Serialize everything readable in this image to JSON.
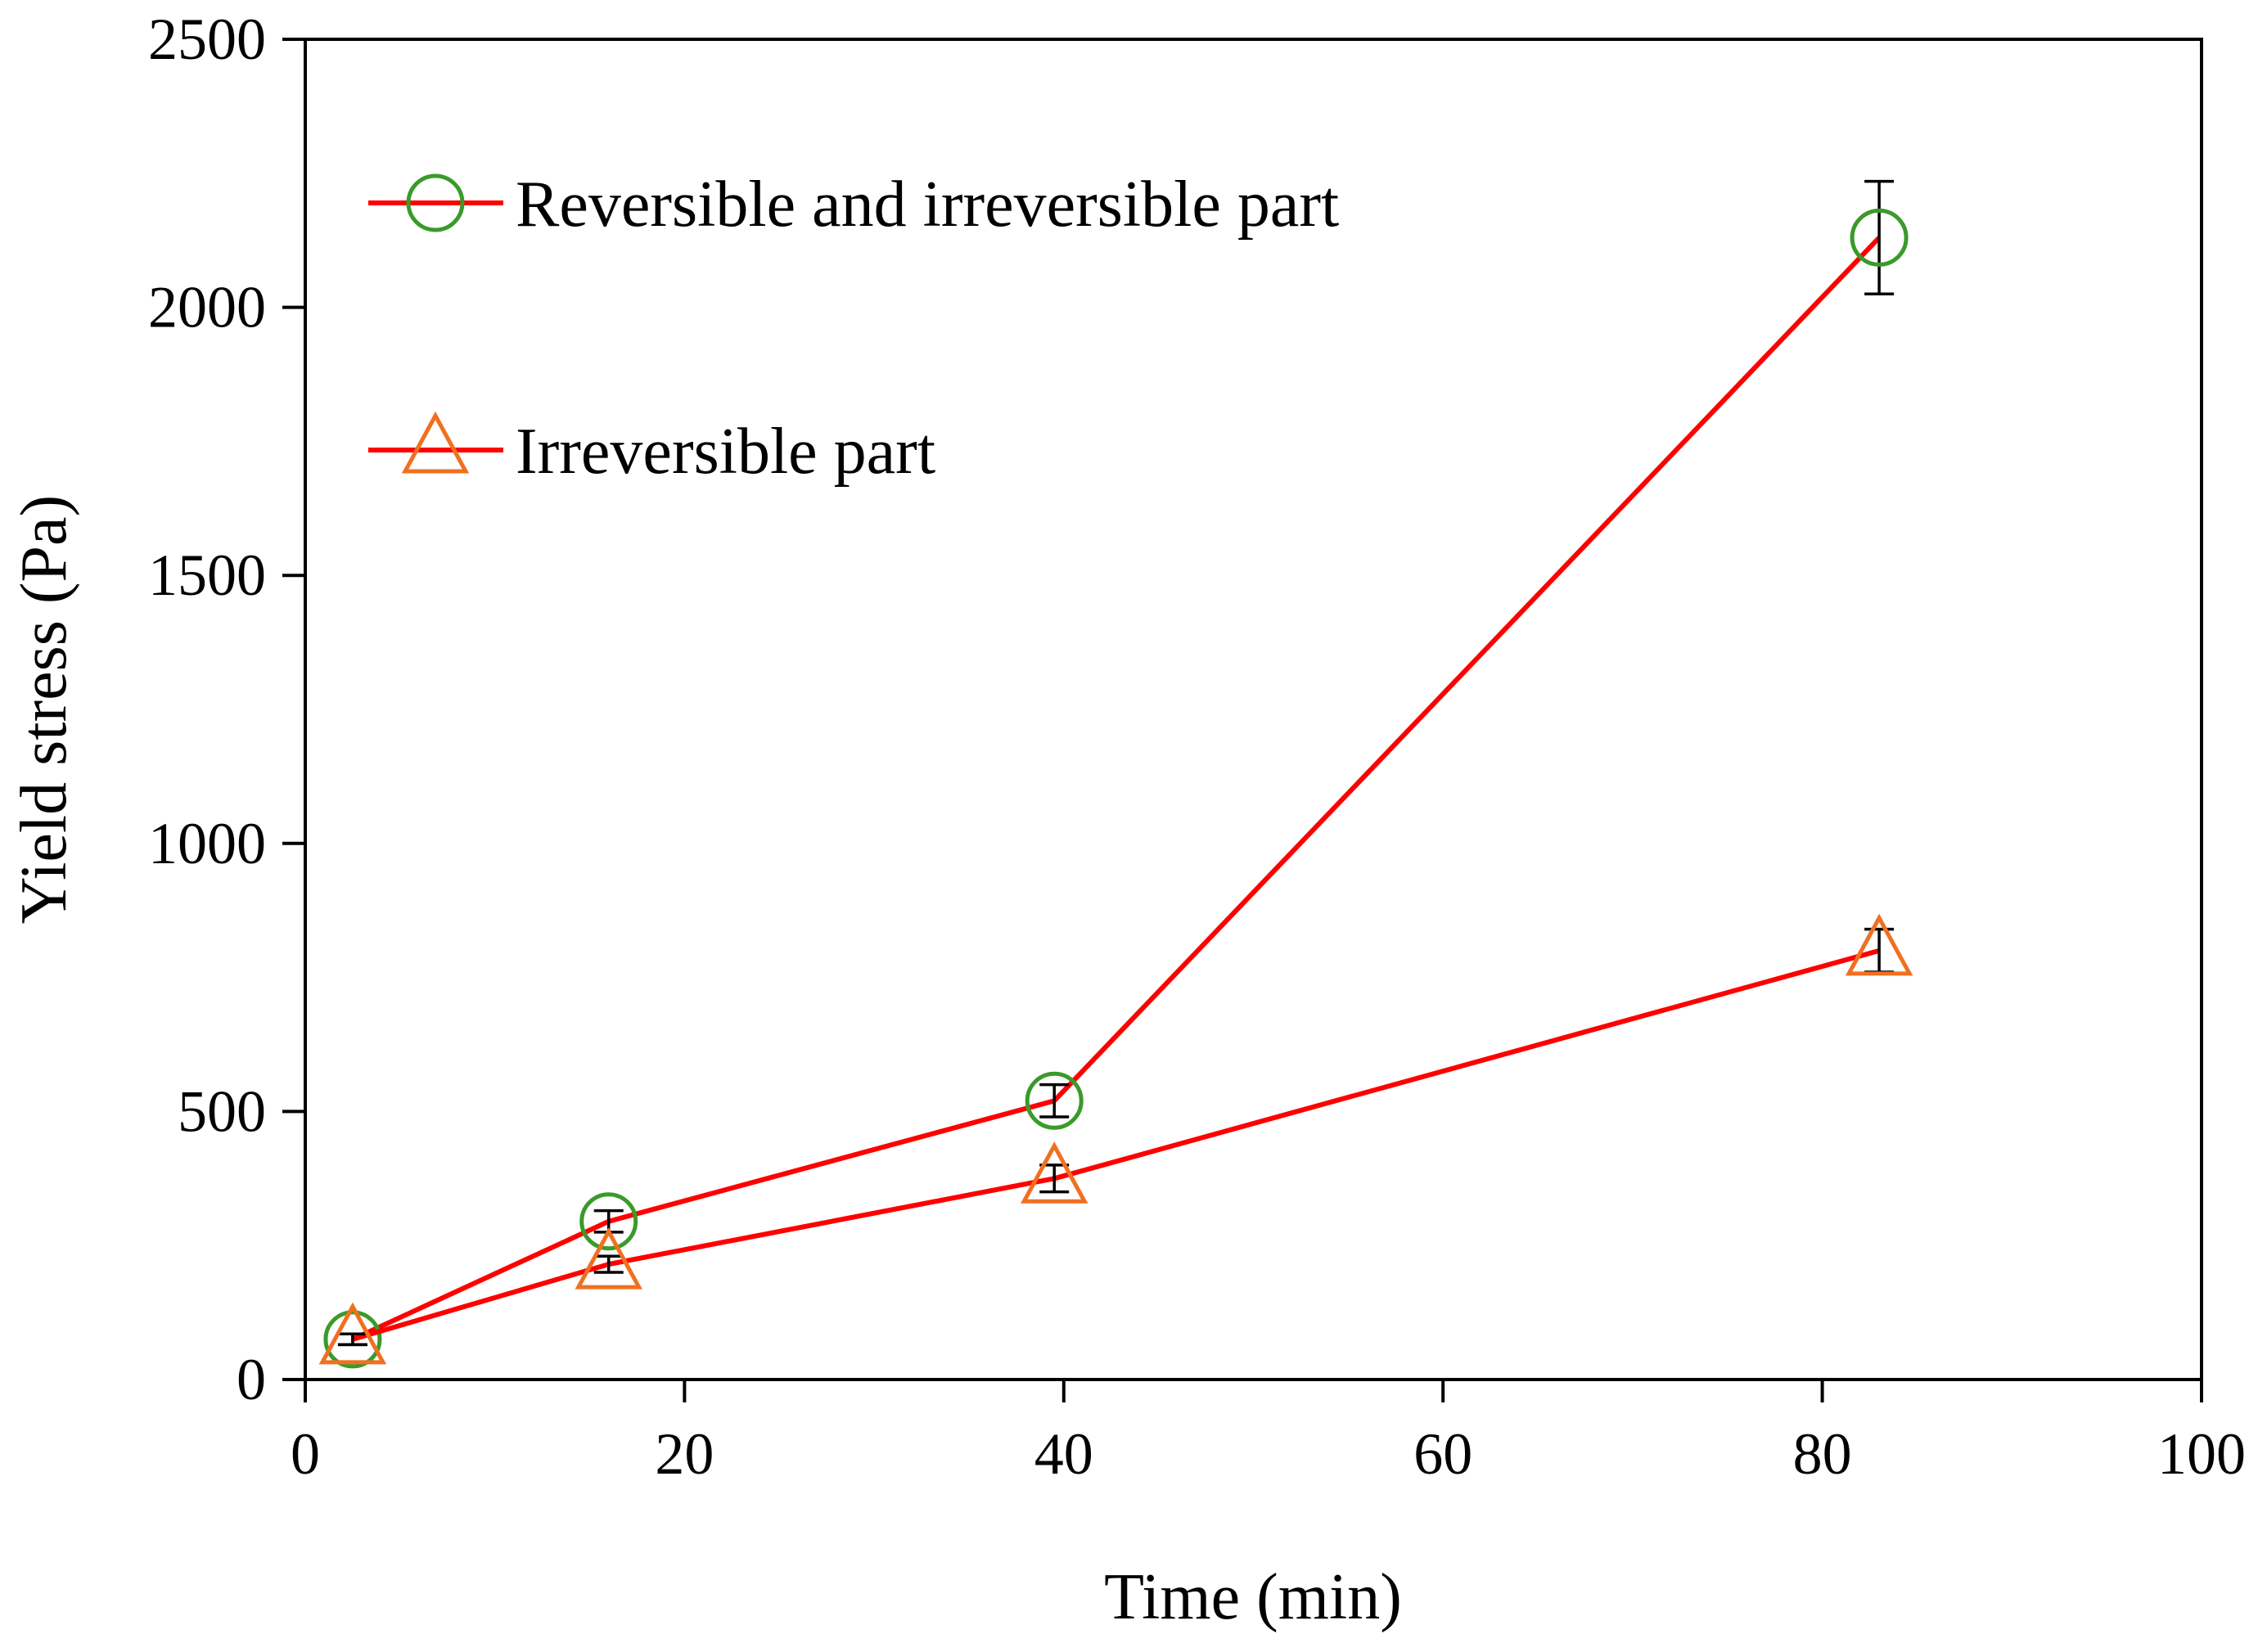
{
  "chart_data": {
    "type": "line",
    "title": "",
    "xlabel": "Time (min)",
    "ylabel": "Yield stress (Pa)",
    "xlim": [
      0,
      100
    ],
    "ylim": [
      0,
      2500
    ],
    "xticks": [
      0,
      20,
      40,
      60,
      80,
      100
    ],
    "yticks": [
      0,
      500,
      1000,
      1500,
      2000,
      2500
    ],
    "grid": false,
    "legend_position": "top-left",
    "series": [
      {
        "name": "Reversible and irreversible part",
        "marker": "circle",
        "line_color": "#ff0000",
        "marker_color": "#3a9a2a",
        "x": [
          2.5,
          16,
          39.5,
          83
        ],
        "y": [
          75,
          295,
          520,
          2130
        ],
        "error": [
          10,
          20,
          30,
          105
        ]
      },
      {
        "name": "Irreversible part",
        "marker": "triangle",
        "line_color": "#ff0000",
        "marker_color": "#f07020",
        "x": [
          2.5,
          16,
          39.5,
          83
        ],
        "y": [
          75,
          215,
          375,
          800
        ],
        "error": [
          10,
          15,
          25,
          40
        ]
      }
    ]
  }
}
